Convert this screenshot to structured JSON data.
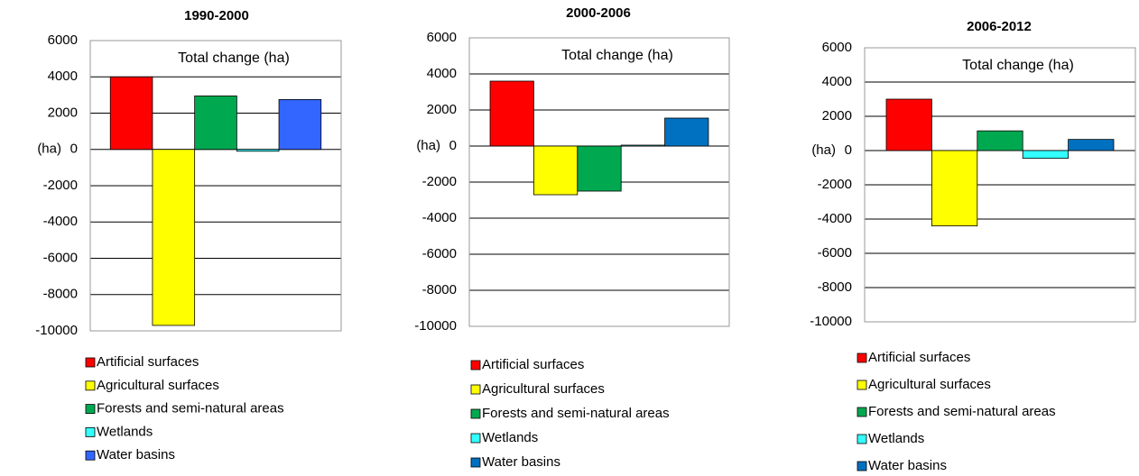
{
  "chart_data": [
    {
      "type": "bar",
      "title": "1990-2000",
      "annotation": "Total change (ha)",
      "y_label": "(ha)",
      "categories": [
        null
      ],
      "series": [
        {
          "name": "Artificial surfaces",
          "color": "#ff0000",
          "values": [
            4000
          ]
        },
        {
          "name": "Agricultural surfaces",
          "color": "#ffff00",
          "values": [
            -9700
          ]
        },
        {
          "name": "Forests and semi-natural areas",
          "color": "#00a850",
          "values": [
            2950
          ]
        },
        {
          "name": "Wetlands",
          "color": "#33ffff",
          "values": [
            -100
          ]
        },
        {
          "name": "Water basins",
          "color": "#3366ff",
          "values": [
            2750
          ]
        }
      ],
      "ylim": [
        -10000,
        6000
      ],
      "yticks": [
        -10000,
        -8000,
        -6000,
        -4000,
        -2000,
        0,
        2000,
        4000,
        6000
      ],
      "grid": true
    },
    {
      "type": "bar",
      "title": "2000-2006",
      "annotation": "Total change  (ha)",
      "y_label": "(ha)",
      "categories": [
        null
      ],
      "series": [
        {
          "name": "Artificial surfaces",
          "color": "#ff0000",
          "values": [
            3600
          ]
        },
        {
          "name": "Agricultural surfaces",
          "color": "#ffff00",
          "values": [
            -2700
          ]
        },
        {
          "name": "Forests and semi-natural areas",
          "color": "#00a850",
          "values": [
            -2500
          ]
        },
        {
          "name": "Wetlands",
          "color": "#33ffff",
          "values": [
            50
          ]
        },
        {
          "name": "Water basins",
          "color": "#0070c0",
          "values": [
            1550
          ]
        }
      ],
      "ylim": [
        -10000,
        6000
      ],
      "yticks": [
        -10000,
        -8000,
        -6000,
        -4000,
        -2000,
        0,
        2000,
        4000,
        6000
      ],
      "grid": true
    },
    {
      "type": "bar",
      "title": "2006-2012",
      "annotation": "Total change  (ha)",
      "y_label": "(ha)",
      "categories": [
        null
      ],
      "series": [
        {
          "name": "Artificial surfaces",
          "color": "#ff0000",
          "values": [
            3000
          ]
        },
        {
          "name": "Agricultural surfaces",
          "color": "#ffff00",
          "values": [
            -4400
          ]
        },
        {
          "name": "Forests and semi-natural areas",
          "color": "#00a850",
          "values": [
            1150
          ]
        },
        {
          "name": "Wetlands",
          "color": "#33ffff",
          "values": [
            -450
          ]
        },
        {
          "name": "Water basins",
          "color": "#0070c0",
          "values": [
            650
          ]
        }
      ],
      "ylim": [
        -10000,
        6000
      ],
      "yticks": [
        -10000,
        -8000,
        -6000,
        -4000,
        -2000,
        0,
        2000,
        4000,
        6000
      ],
      "grid": true
    }
  ]
}
